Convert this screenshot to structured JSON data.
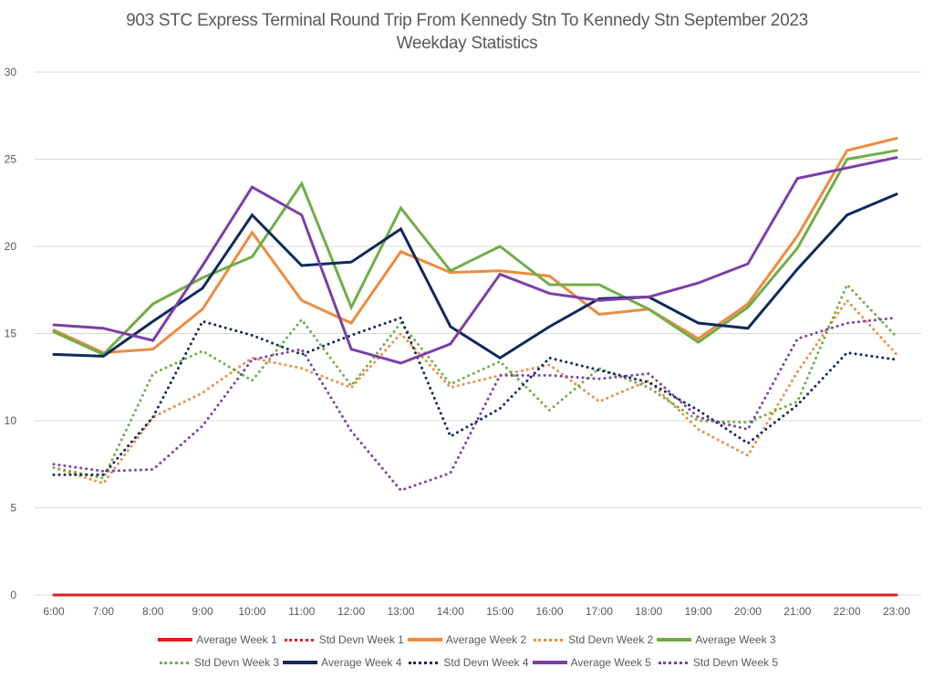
{
  "chart_data": {
    "type": "line",
    "title": "903 STC Express Terminal Round Trip From Kennedy Stn To Kennedy Stn September 2023",
    "subtitle": "Weekday Statistics",
    "xlabel": "",
    "ylabel": "",
    "ylim": [
      0,
      30
    ],
    "yticks": [
      "0",
      "5",
      "10",
      "15",
      "20",
      "25",
      "30"
    ],
    "ytick_values": [
      0,
      5,
      10,
      15,
      20,
      25,
      30
    ],
    "grid": true,
    "legend_position": "bottom",
    "categories": [
      "6:00",
      "7:00",
      "8:00",
      "9:00",
      "10:00",
      "11:00",
      "12:00",
      "13:00",
      "14:00",
      "15:00",
      "16:00",
      "17:00",
      "18:00",
      "19:00",
      "20:00",
      "21:00",
      "22:00",
      "23:00"
    ],
    "series": [
      {
        "name": "Average Week 1",
        "style": "solid",
        "color": "#e0201b",
        "values": [
          0,
          0,
          0,
          0,
          0,
          0,
          0,
          0,
          0,
          0,
          0,
          0,
          0,
          0,
          0,
          0,
          0,
          0
        ]
      },
      {
        "name": "Std Devn Week 1",
        "style": "dotted",
        "color": "#e0201b",
        "values": [
          0,
          0,
          0,
          0,
          0,
          0,
          0,
          0,
          0,
          0,
          0,
          0,
          0,
          0,
          0,
          0,
          0,
          0
        ]
      },
      {
        "name": "Average Week 2",
        "style": "solid",
        "color": "#ed8b3f",
        "values": [
          15.2,
          13.9,
          14.1,
          16.4,
          20.8,
          16.9,
          15.6,
          19.7,
          18.5,
          18.6,
          18.3,
          16.1,
          16.4,
          14.7,
          16.7,
          20.6,
          25.5,
          26.2
        ]
      },
      {
        "name": "Std Devn Week 2",
        "style": "dotted",
        "color": "#ed8b3f",
        "values": [
          7.3,
          6.4,
          10.2,
          11.6,
          13.6,
          13.0,
          11.9,
          15.0,
          11.9,
          12.6,
          13.2,
          11.1,
          12.3,
          9.5,
          8.0,
          12.8,
          16.9,
          13.8
        ]
      },
      {
        "name": "Average Week 3",
        "style": "solid",
        "color": "#70ad47",
        "values": [
          15.1,
          13.8,
          16.7,
          18.2,
          19.4,
          23.6,
          16.5,
          22.2,
          18.6,
          20.0,
          17.8,
          17.8,
          16.4,
          14.5,
          16.5,
          19.9,
          25.0,
          25.5
        ]
      },
      {
        "name": "Std Devn Week 3",
        "style": "dotted",
        "color": "#70ad47",
        "values": [
          7.3,
          6.7,
          12.7,
          14.0,
          12.3,
          15.8,
          12.0,
          15.6,
          12.1,
          13.4,
          10.6,
          13.0,
          11.9,
          10.0,
          9.9,
          11.1,
          17.8,
          14.8
        ]
      },
      {
        "name": "Average Week 4",
        "style": "solid",
        "color": "#0e2a5c",
        "values": [
          13.8,
          13.7,
          15.7,
          17.6,
          21.8,
          18.9,
          19.1,
          21.0,
          15.4,
          13.6,
          15.4,
          17.0,
          17.1,
          15.6,
          15.3,
          18.7,
          21.8,
          23.0
        ]
      },
      {
        "name": "Std Devn Week 4",
        "style": "dotted",
        "color": "#0e2a5c",
        "values": [
          6.9,
          6.9,
          10.2,
          15.7,
          14.9,
          13.8,
          14.9,
          15.9,
          9.1,
          10.7,
          13.6,
          12.9,
          12.2,
          10.6,
          8.7,
          10.9,
          13.9,
          13.5
        ]
      },
      {
        "name": "Average Week 5",
        "style": "solid",
        "color": "#7b3fa8",
        "values": [
          15.5,
          15.3,
          14.6,
          18.9,
          23.4,
          21.8,
          14.1,
          13.3,
          14.4,
          18.4,
          17.3,
          16.9,
          17.1,
          17.9,
          19.0,
          23.9,
          24.5,
          25.1
        ]
      },
      {
        "name": "Std Devn Week 5",
        "style": "dotted",
        "color": "#7b3fa8",
        "values": [
          7.5,
          7.1,
          7.2,
          9.7,
          13.5,
          14.1,
          9.4,
          6.0,
          7.0,
          12.6,
          12.6,
          12.4,
          12.7,
          10.2,
          9.5,
          14.7,
          15.6,
          15.9
        ]
      }
    ],
    "legend_rows": [
      [
        0,
        1,
        2,
        3,
        4
      ],
      [
        5,
        6,
        7,
        8,
        9
      ]
    ]
  }
}
